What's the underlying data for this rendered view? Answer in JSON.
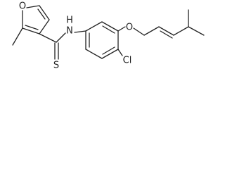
{
  "atoms": {
    "furan_oxygen": "O",
    "sulfur": "S",
    "nitrogen": "N",
    "hydrogen": "H",
    "ether_oxygen": "O",
    "chlorine": "Cl"
  }
}
